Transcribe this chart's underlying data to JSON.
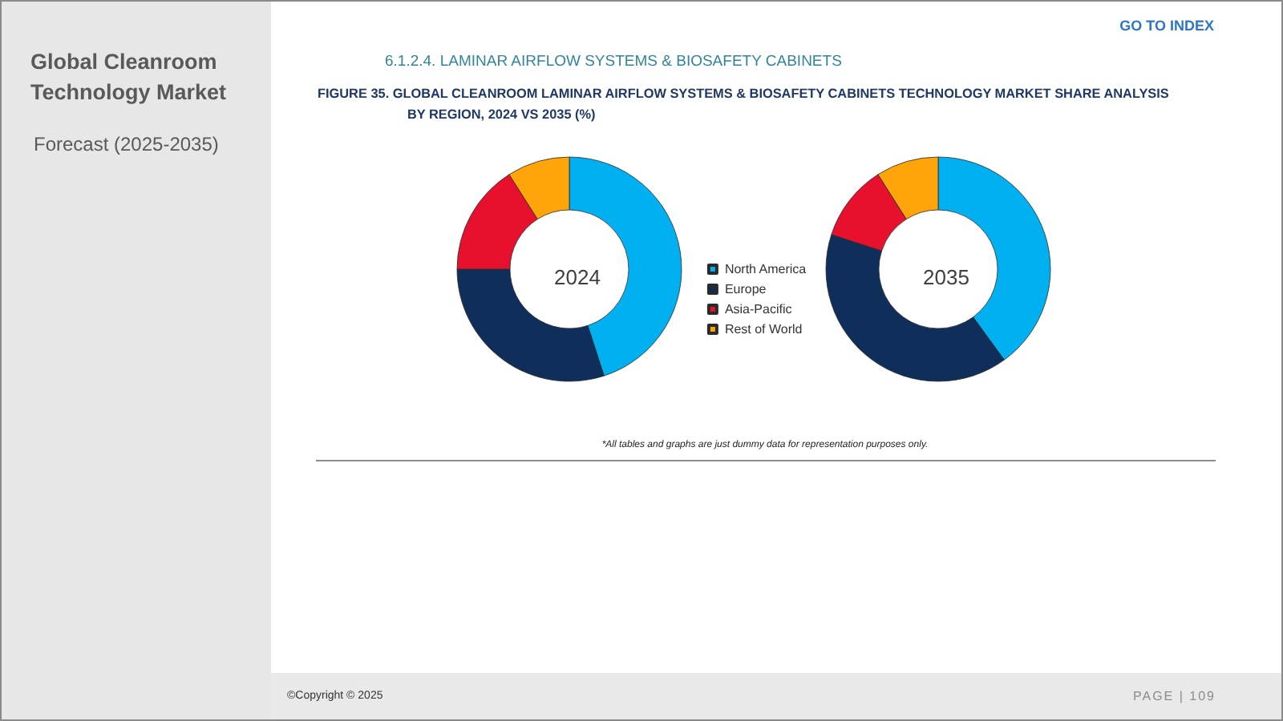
{
  "chart_data": [
    {
      "type": "other",
      "title": "FIGURE 35. GLOBAL CLEANROOM LAMINAR AIRFLOW SYSTEMS & BIOSAFETY CABINETS TECHNOLOGY MARKET SHARE ANALYSIS BY REGION, 2024 VS 2035 (%)",
      "subtitle": "6.1.2.4. LAMINAR AIRFLOW SYSTEMS & BIOSAFETY CABINETS",
      "annotations": [
        "Global Cleanroom Technology Market",
        "Forecast (2025-2035)",
        "GO TO INDEX",
        "*All tables and graphs are just dummy data for representation purposes only.",
        "©Copyright © 2025",
        "PAGE | 109"
      ]
    },
    {
      "type": "donut",
      "categories": [
        "North America",
        "Europe",
        "Asia-Pacific",
        "Rest of World"
      ],
      "colors": [
        "#00b0f0",
        "#0f2f5a",
        "#e8112d",
        "#ffa50a"
      ],
      "legend": "center",
      "series": [
        {
          "name": "2024",
          "values": [
            45,
            30,
            16,
            9
          ]
        },
        {
          "name": "2035",
          "values": [
            40,
            40,
            11,
            9
          ]
        }
      ]
    }
  ]
}
